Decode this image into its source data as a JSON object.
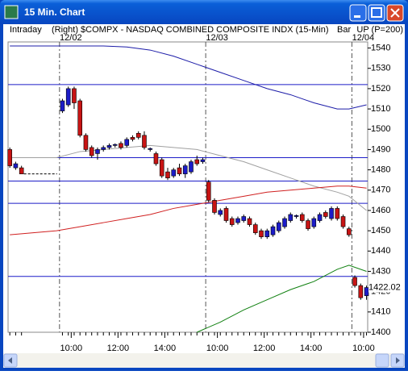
{
  "window": {
    "title": "15 Min. Chart"
  },
  "chart_data": {
    "type": "candlestick",
    "header_left": "Intraday",
    "title": "(Right) $COMPX - NASDAQ COMBINED COMPOSITE INDX (15-Min)",
    "bar_label": "Bar",
    "subtitle": "UP (P=200)",
    "xlim": [
      -0.3,
      61.2
    ],
    "ylim": [
      1400,
      1543
    ],
    "yticks": [
      1400,
      1410,
      1420,
      1430,
      1440,
      1450,
      1460,
      1470,
      1480,
      1490,
      1500,
      1510,
      1520,
      1530,
      1540
    ],
    "xticks": [
      {
        "value": 10.5,
        "label": "10:00"
      },
      {
        "value": 18.5,
        "label": "12:00"
      },
      {
        "value": 26.5,
        "label": "14:00"
      },
      {
        "value": 35.5,
        "label": "10:00"
      },
      {
        "value": 43.5,
        "label": "12:00"
      },
      {
        "value": 51.5,
        "label": "14:00"
      },
      {
        "value": 60.5,
        "label": "10:00"
      }
    ],
    "day_separators": [
      {
        "value": 8.5,
        "label": "12/02"
      },
      {
        "value": 33.5,
        "label": "12/03"
      },
      {
        "value": 58.5,
        "label": "12/04"
      }
    ],
    "up_color": "#1c1cc8",
    "down_color": "#c81414",
    "x": [
      0,
      1,
      2,
      9,
      10,
      11,
      12,
      13,
      14,
      15,
      16,
      17,
      18,
      19,
      20,
      21,
      22,
      23,
      24,
      25,
      26,
      27,
      28,
      29,
      30,
      31,
      32,
      33,
      34,
      35,
      36,
      37,
      38,
      39,
      40,
      41,
      42,
      43,
      44,
      45,
      46,
      47,
      48,
      49,
      50,
      51,
      52,
      53,
      54,
      55,
      56,
      57,
      58,
      59,
      60,
      61
    ],
    "open": [
      1490,
      1481,
      1481,
      1509,
      1512,
      1520,
      1514,
      1497,
      1491,
      1488,
      1490,
      1491,
      1492,
      1493,
      1492,
      1496,
      1498,
      1497,
      1490,
      1488,
      1485,
      1479,
      1477,
      1481,
      1478,
      1479,
      1485,
      1484,
      1474,
      1465,
      1458,
      1461,
      1456,
      1454,
      1455,
      1456,
      1453,
      1450,
      1447,
      1448,
      1450,
      1452,
      1455,
      1457,
      1458,
      1455,
      1452,
      1455,
      1459,
      1456,
      1461,
      1457,
      1451,
      1427,
      1423,
      1418
    ],
    "high": [
      1491,
      1484,
      1482,
      1515,
      1521,
      1521,
      1515,
      1498,
      1492,
      1491,
      1492,
      1493,
      1493,
      1494,
      1496,
      1497,
      1499,
      1499,
      1491,
      1489,
      1486,
      1481,
      1481,
      1483,
      1483,
      1485,
      1487,
      1486,
      1475,
      1466,
      1461,
      1462,
      1457,
      1457,
      1458,
      1457,
      1454,
      1451,
      1451,
      1453,
      1455,
      1457,
      1459,
      1458,
      1459,
      1456,
      1457,
      1459,
      1460,
      1462,
      1462,
      1458,
      1452,
      1428,
      1424,
      1423
    ],
    "low": [
      1481,
      1480,
      1478,
      1508,
      1511,
      1510,
      1496,
      1489,
      1486,
      1485,
      1489,
      1490,
      1491,
      1490,
      1491,
      1494,
      1495,
      1490,
      1489,
      1482,
      1476,
      1475,
      1476,
      1477,
      1476,
      1478,
      1482,
      1483,
      1464,
      1458,
      1457,
      1454,
      1452,
      1453,
      1454,
      1452,
      1448,
      1446,
      1446,
      1447,
      1449,
      1451,
      1454,
      1456,
      1454,
      1450,
      1451,
      1454,
      1456,
      1455,
      1455,
      1451,
      1447,
      1422,
      1416,
      1416
    ],
    "close": [
      1482,
      1483,
      1478,
      1514,
      1520,
      1513,
      1497,
      1490,
      1487,
      1490,
      1491,
      1492,
      1492.5,
      1491,
      1495,
      1495,
      1496,
      1491,
      1490.5,
      1483,
      1477,
      1476,
      1480,
      1478,
      1482,
      1484,
      1483,
      1485,
      1465,
      1459,
      1460,
      1455,
      1453,
      1456,
      1457,
      1453,
      1449,
      1447,
      1450,
      1452,
      1454,
      1456,
      1458,
      1457.5,
      1455,
      1451,
      1456,
      1458,
      1457,
      1461,
      1456,
      1452,
      1448,
      1423,
      1417,
      1422.02
    ],
    "last": 1422.02,
    "lines": [
      {
        "color": "#1c1ca8",
        "x": [
          0,
          4,
          8,
          12,
          16,
          20,
          24,
          28,
          32,
          36,
          40,
          44,
          48,
          52,
          56,
          58,
          61
        ],
        "values": [
          1541,
          1541,
          1541,
          1541,
          1541,
          1540.5,
          1539,
          1536,
          1532,
          1528,
          1524,
          1520,
          1517,
          1513,
          1510,
          1510,
          1512
        ]
      },
      {
        "color": "#a0a0a0",
        "x": [
          0,
          4,
          8,
          12,
          16,
          20,
          24,
          28,
          32,
          36,
          40,
          44,
          48,
          52,
          56,
          58,
          61
        ],
        "values": [
          1486,
          1486,
          1486,
          1489,
          1490,
          1491,
          1492,
          1491,
          1490,
          1487,
          1484,
          1480,
          1476,
          1472,
          1469,
          1467,
          1460
        ]
      },
      {
        "color": "#d02020",
        "x": [
          0,
          4,
          8,
          12,
          16,
          20,
          24,
          28,
          32,
          36,
          40,
          44,
          48,
          52,
          56,
          58,
          61
        ],
        "values": [
          1448,
          1449,
          1450,
          1452,
          1454,
          1456,
          1458,
          1461,
          1463,
          1465,
          1467,
          1469,
          1470,
          1471,
          1472,
          1472,
          1471
        ]
      },
      {
        "color": "#108010",
        "x": [
          32,
          36,
          40,
          44,
          48,
          52,
          56,
          58,
          61
        ],
        "values": [
          1400,
          1405,
          1411,
          1416,
          1421,
          1425,
          1431,
          1433,
          1430
        ]
      }
    ],
    "levels": [
      1522,
      1486,
      1474.5,
      1463.5,
      1427.5
    ],
    "level_color": "#1c1cc8"
  }
}
